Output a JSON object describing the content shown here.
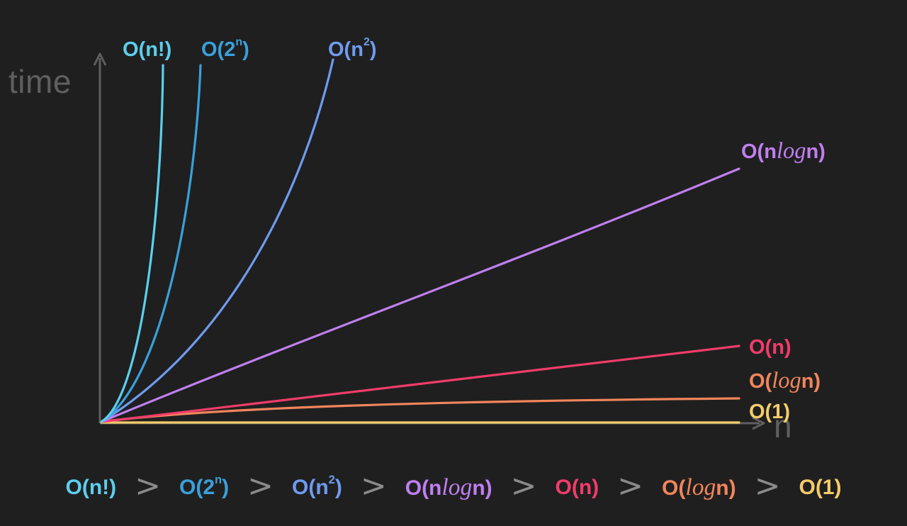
{
  "chart_data": {
    "type": "line",
    "xlabel": "n",
    "ylabel": "time",
    "grid": false,
    "series": [
      {
        "key": "fact",
        "name": "O(n!)",
        "label_parts": [
          "O(n!)"
        ],
        "color": "#5ccfee"
      },
      {
        "key": "exp",
        "name": "O(2ⁿ)",
        "label_parts": [
          "O(2",
          "n",
          ")"
        ],
        "color": "#3aa0dc"
      },
      {
        "key": "quad",
        "name": "O(n²)",
        "label_parts": [
          "O(n",
          "2",
          ")"
        ],
        "color": "#6f9bf0"
      },
      {
        "key": "nlogn",
        "name": "O(nlogn)",
        "label_parts": [
          "O(n",
          "log",
          "n)"
        ],
        "color": "#c07ff0"
      },
      {
        "key": "lin",
        "name": "O(n)",
        "label_parts": [
          "O(n)"
        ],
        "color": "#f23c6b"
      },
      {
        "key": "log",
        "name": "O(logn)",
        "label_parts": [
          "O(",
          "log",
          "n)"
        ],
        "color": "#f2855c"
      },
      {
        "key": "const",
        "name": "O(1)",
        "label_parts": [
          "O(1)"
        ],
        "color": "#f5cc6a"
      }
    ],
    "ordering": [
      "O(n!)",
      "O(2ⁿ)",
      "O(n²)",
      "O(nlogn)",
      "O(n)",
      "O(logn)",
      "O(1)"
    ],
    "ordering_separator": ">"
  },
  "colors": {
    "background": "#1f1f1f",
    "axis": "#5f5f5f",
    "separator": "#8a8a8a"
  }
}
